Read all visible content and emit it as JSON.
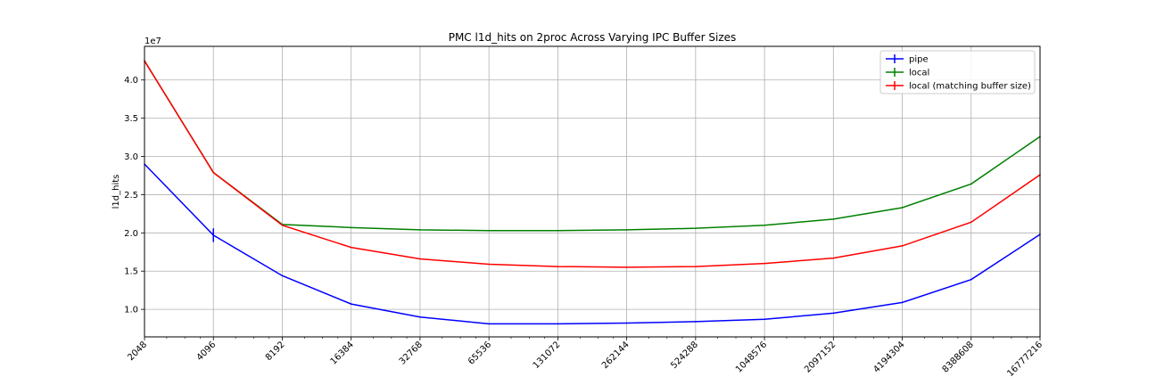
{
  "chart_data": {
    "type": "line",
    "title": "PMC l1d_hits on 2proc Across Varying IPC Buffer Sizes",
    "xlabel": "",
    "ylabel": "l1d_hits",
    "y_offset_label": "1e7",
    "x_scale": "log2",
    "x": [
      2048,
      4096,
      8192,
      16384,
      32768,
      65536,
      131072,
      262144,
      524288,
      1048576,
      2097152,
      4194304,
      8388608,
      16777216
    ],
    "x_tick_labels": [
      "2048",
      "4096",
      "8192",
      "16384",
      "32768",
      "65536",
      "131072",
      "262144",
      "524288",
      "1048576",
      "2097152",
      "4194304",
      "8388608",
      "16777216"
    ],
    "ylim": [
      0.64,
      4.44
    ],
    "y_ticks": [
      1.0,
      1.5,
      2.0,
      2.5,
      3.0,
      3.5,
      4.0
    ],
    "y_tick_labels": [
      "1.0",
      "1.5",
      "2.0",
      "2.5",
      "3.0",
      "3.5",
      "4.0"
    ],
    "grid": true,
    "legend_position": "top-right",
    "series": [
      {
        "name": "pipe",
        "color": "#0000ff",
        "values": [
          2.9,
          1.97,
          1.44,
          1.07,
          0.9,
          0.81,
          0.81,
          0.82,
          0.84,
          0.87,
          0.95,
          1.09,
          1.39,
          1.98
        ],
        "errors": [
          0.0,
          0.09,
          0.0,
          0.0,
          0.0,
          0.0,
          0.0,
          0.0,
          0.0,
          0.0,
          0.0,
          0.0,
          0.0,
          0.0
        ]
      },
      {
        "name": "local",
        "color": "#008000",
        "values": [
          4.25,
          2.79,
          2.11,
          2.07,
          2.04,
          2.03,
          2.03,
          2.04,
          2.06,
          2.1,
          2.18,
          2.33,
          2.64,
          3.26
        ],
        "errors": [
          0,
          0,
          0,
          0,
          0,
          0,
          0,
          0,
          0,
          0,
          0,
          0,
          0,
          0
        ]
      },
      {
        "name": "local (matching buffer size)",
        "color": "#ff0000",
        "values": [
          4.25,
          2.79,
          2.1,
          1.81,
          1.66,
          1.59,
          1.56,
          1.55,
          1.56,
          1.6,
          1.67,
          1.83,
          2.14,
          2.76
        ],
        "errors": [
          0,
          0,
          0,
          0,
          0,
          0,
          0,
          0,
          0,
          0,
          0,
          0,
          0,
          0
        ]
      }
    ]
  }
}
